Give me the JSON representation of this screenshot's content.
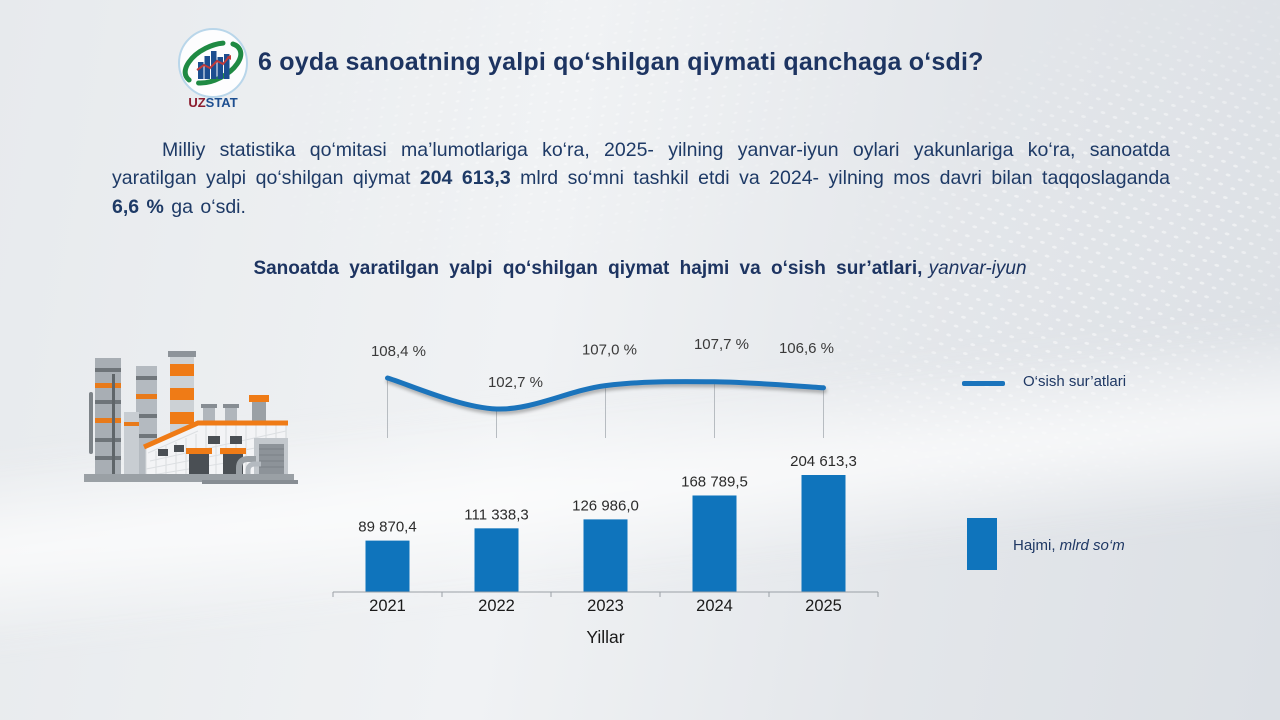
{
  "header": {
    "title": "6 oyda sanoatning yalpi qo‘shilgan qiymati qanchaga o‘sdi?",
    "logo": {
      "uz": "UZ",
      "stat": "STAT"
    }
  },
  "intro": {
    "text_before": "Milliy statistika qo‘mitasi ma’lumotlariga ko‘ra, 2025- yilning yanvar-iyun oylari yakunlariga ko‘ra, sanoatda yaratilgan yalpi qo‘shilgan qiymat ",
    "bold_value": "204 613,3",
    "text_middle": " mlrd so‘mni tashkil etdi va 2024- yilning mos davri bilan taqqoslaganda ",
    "bold_percent": "6,6 %",
    "text_after": " ga o‘sdi."
  },
  "chart": {
    "title_main": "Sanoatda yaratilgan yalpi qo‘shilgan qiymat hajmi va o‘sish sur’atlari,",
    "title_italic": " yanvar-iyun",
    "legend_line": "O‘sish sur’atlari",
    "legend_bar_normal": "Hajmi,",
    "legend_bar_italic": " mlrd so‘m"
  },
  "chart_data": {
    "type": "combo",
    "categories": [
      "2021",
      "2022",
      "2023",
      "2024",
      "2025"
    ],
    "series": [
      {
        "name": "Hajmi, mlrd so‘m",
        "type": "bar",
        "values": [
          89870.4,
          111338.3,
          126986.0,
          168789.5,
          204613.3
        ],
        "labels": [
          "89 870,4",
          "111 338,3",
          "126 986,0",
          "168 789,5",
          "204 613,3"
        ],
        "color": "#0f74bc"
      },
      {
        "name": "O‘sish sur’atlari",
        "type": "line",
        "values": [
          108.4,
          102.7,
          107.0,
          107.7,
          106.6
        ],
        "labels": [
          "108,4 %",
          "102,7 %",
          "107,0 %",
          "107,7 %",
          "106,6 %"
        ],
        "color": "#1b74bc"
      }
    ],
    "xlabel": "Yillar",
    "ylabel": "",
    "legend_position": "right",
    "grid": false
  },
  "colors": {
    "accent_blue": "#0f74bc",
    "line_blue": "#1b74bc",
    "navy_text": "#1f3864",
    "axis_gray": "#9aa0a6",
    "label_dark": "#2b2b2b"
  }
}
